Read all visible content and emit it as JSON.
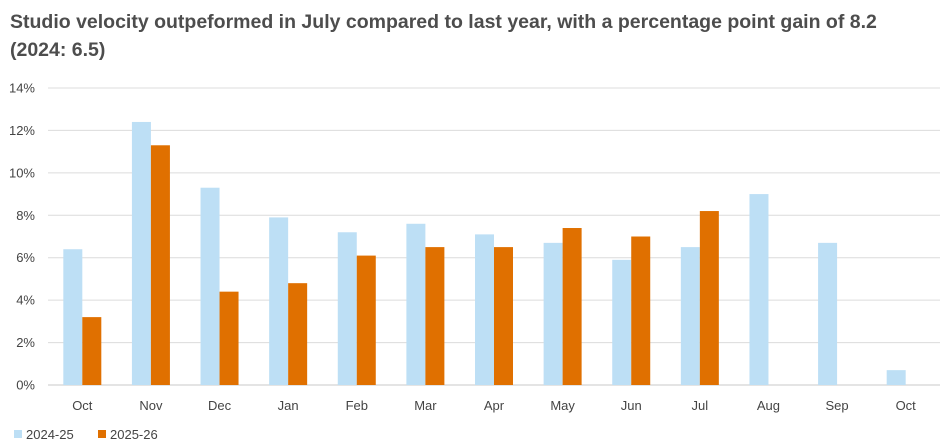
{
  "title": "Studio velocity outpeformed in July compared to last year, with a percentage point gain of 8.2 (2024: 6.5)",
  "chart_data": {
    "type": "bar",
    "title": "Studio velocity outpeformed in July compared to last year, with a percentage point gain of 8.2 (2024: 6.5)",
    "categories": [
      "Oct",
      "Nov",
      "Dec",
      "Jan",
      "Feb",
      "Mar",
      "Apr",
      "May",
      "Jun",
      "Jul",
      "Aug",
      "Sep",
      "Oct"
    ],
    "series": [
      {
        "name": "2024-25",
        "color": "#bddff5",
        "values": [
          6.4,
          12.4,
          9.3,
          7.9,
          7.2,
          7.6,
          7.1,
          6.7,
          5.9,
          6.5,
          9.0,
          6.7,
          0.7
        ]
      },
      {
        "name": "2025-26",
        "color": "#e07000",
        "values": [
          3.2,
          11.3,
          4.4,
          4.8,
          6.1,
          6.5,
          6.5,
          7.4,
          7.0,
          8.2,
          null,
          null,
          null
        ]
      }
    ],
    "ylim": [
      0,
      14
    ],
    "yticks": [
      "0%",
      "2%",
      "4%",
      "6%",
      "8%",
      "10%",
      "12%",
      "14%"
    ],
    "grid": true,
    "legend_position": "bottom-left"
  }
}
